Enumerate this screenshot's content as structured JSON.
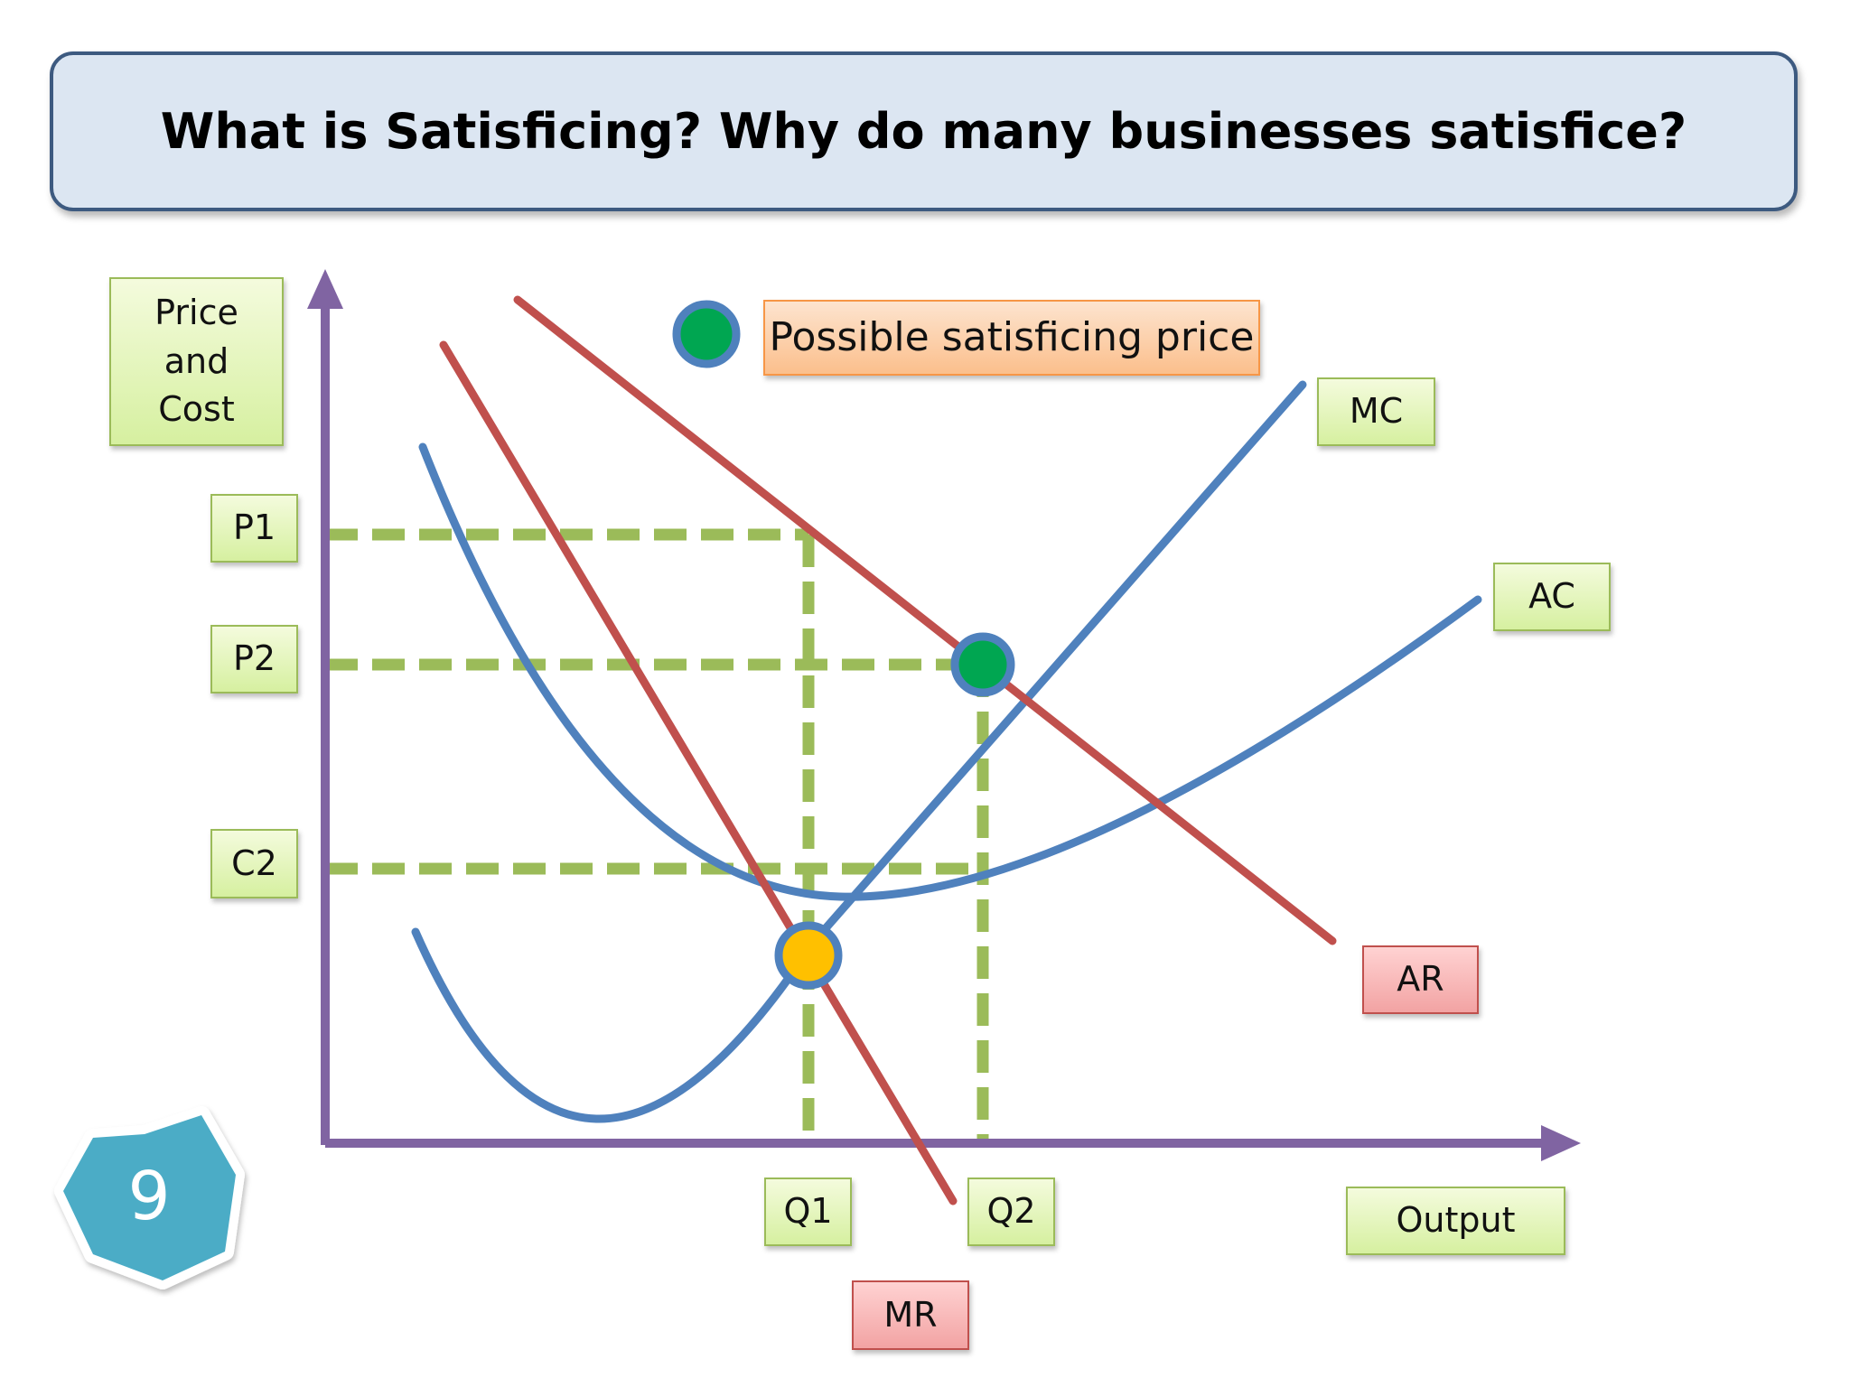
{
  "title": "What is Satisficing? Why do many businesses satisfice?",
  "slide_number": "9",
  "axes": {
    "y_label": "Price\nand\nCost",
    "x_label": "Output"
  },
  "y_markers": [
    "P1",
    "P2",
    "C2"
  ],
  "x_markers": [
    "Q1",
    "Q2"
  ],
  "curves": {
    "mc": "MC",
    "ac": "AC",
    "ar": "AR",
    "mr": "MR"
  },
  "legend": {
    "satisficing_label": "Possible satisficing price"
  },
  "colors": {
    "cost_curves": "#4f81bd",
    "revenue_curves": "#c0504d",
    "axes": "#8064a2",
    "guides": "#9bbb59",
    "satisficing_point": "#00a651",
    "profit_max_point": "#ffc000",
    "title_bg": "#dce6f2",
    "slide_badge": "#4bacc6"
  }
}
